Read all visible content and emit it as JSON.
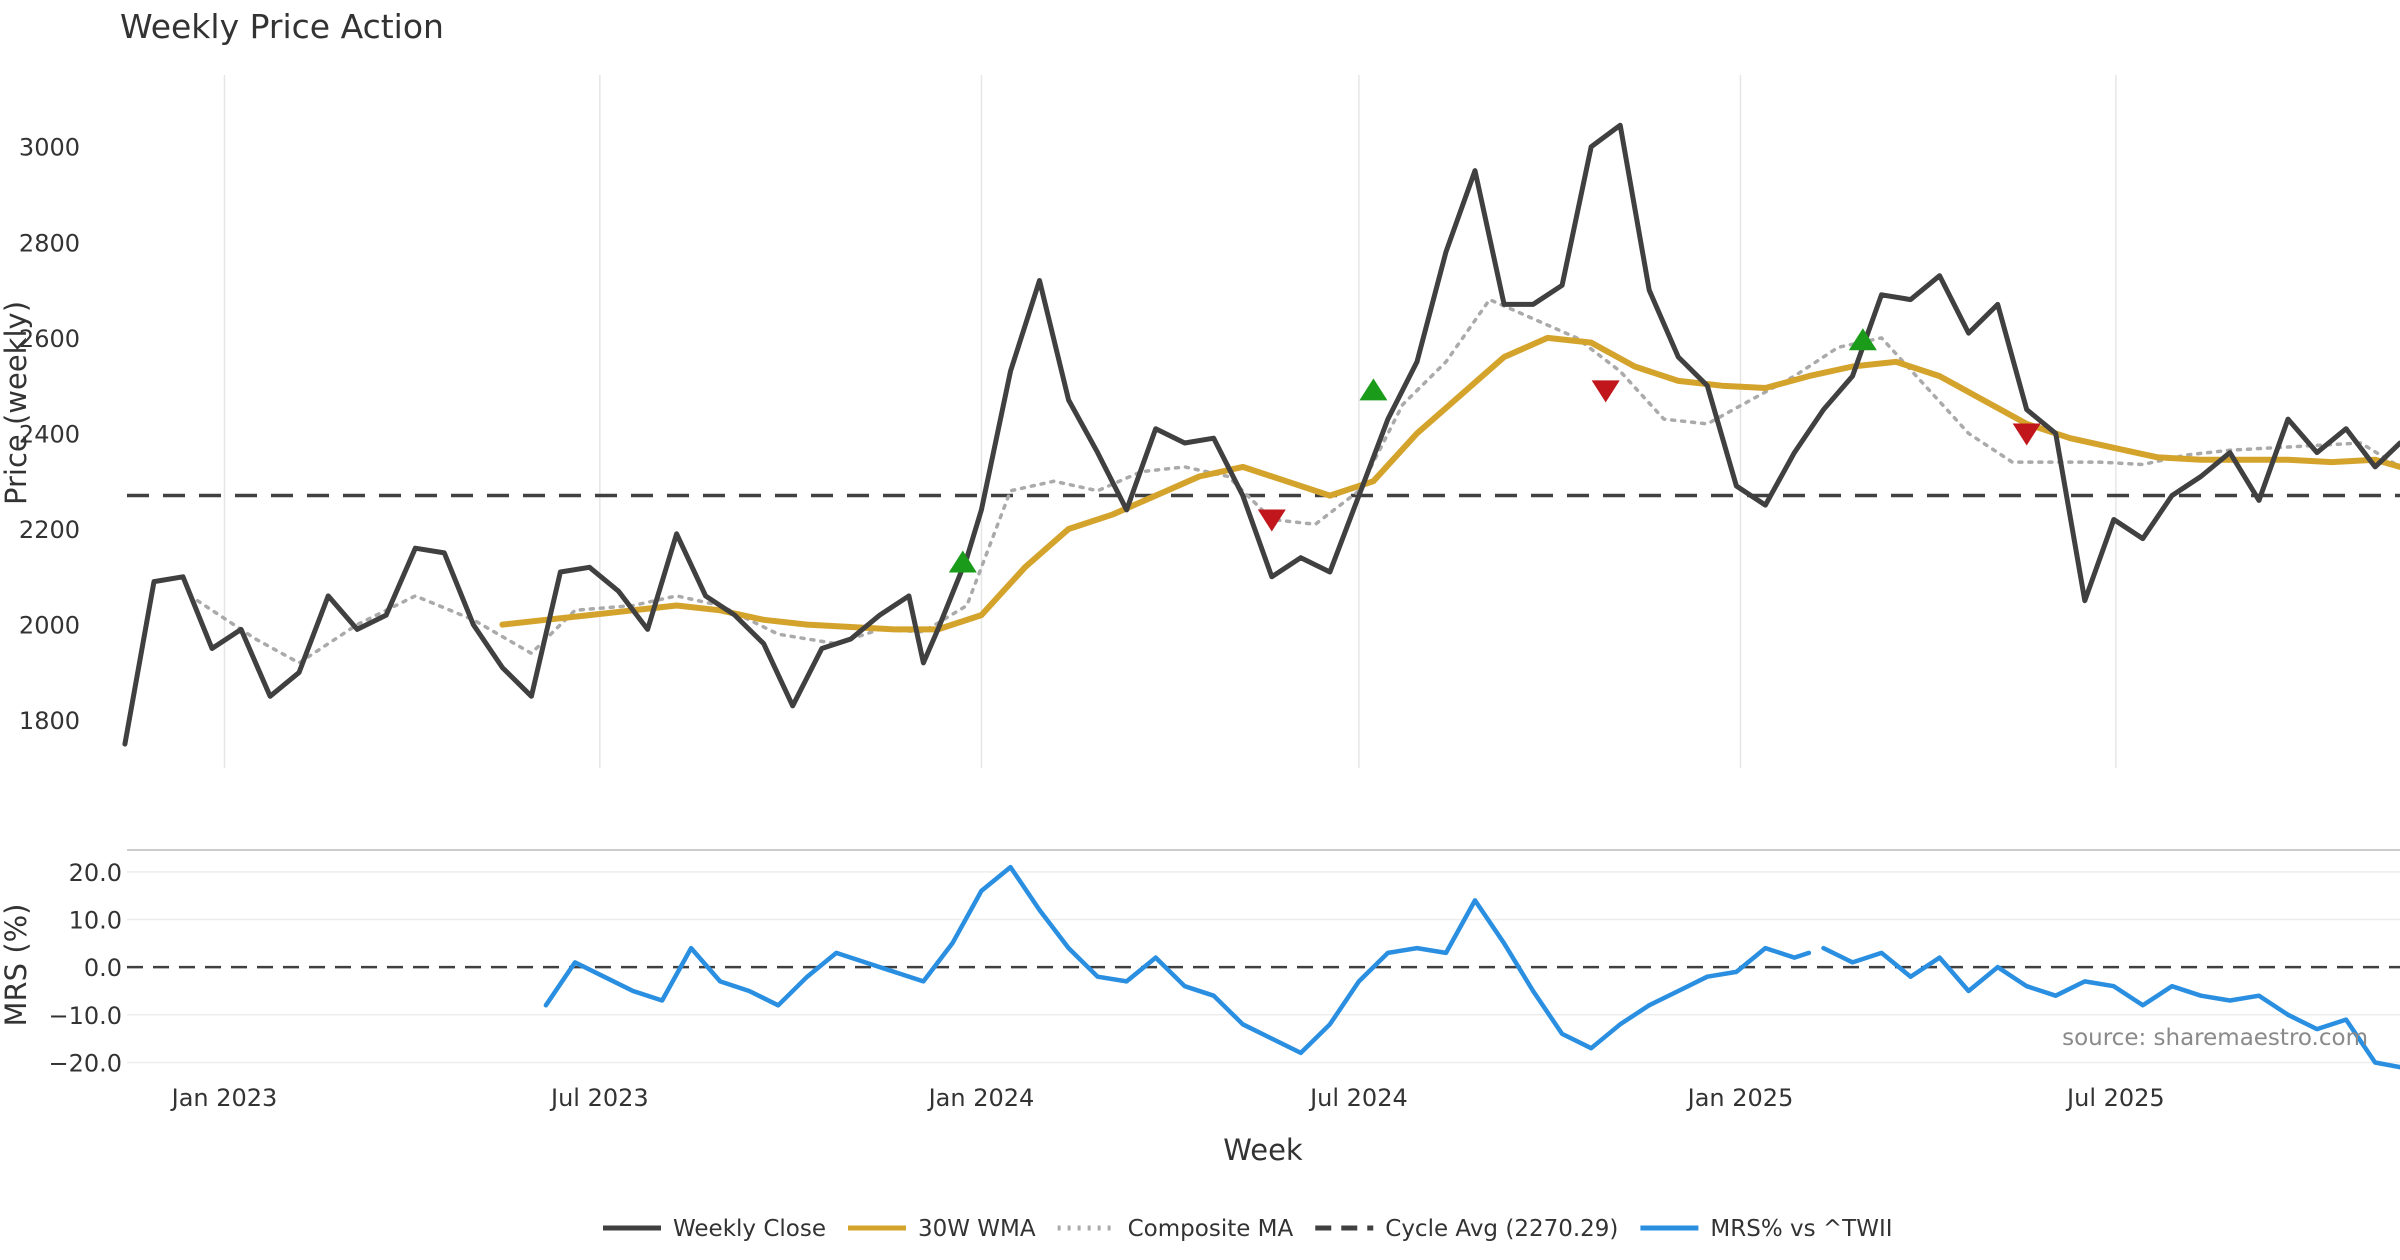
{
  "chart_data": [
    {
      "type": "line",
      "title": "Weekly Price Action",
      "ylabel": "Price (weekly)",
      "ylim": [
        1700,
        3150
      ],
      "yticks": [
        1800,
        2000,
        2200,
        2400,
        2600,
        2800,
        3000
      ],
      "xlim": [
        "2022-11-15",
        "2025-11-15"
      ],
      "xticks": [
        {
          "date": "2023-01-01",
          "label": "Jan 2023"
        },
        {
          "date": "2023-07-01",
          "label": "Jul 2023"
        },
        {
          "date": "2024-01-01",
          "label": "Jan 2024"
        },
        {
          "date": "2024-07-01",
          "label": "Jul 2024"
        },
        {
          "date": "2025-01-01",
          "label": "Jan 2025"
        },
        {
          "date": "2025-07-01",
          "label": "Jul 2025"
        }
      ],
      "grid": "vertical",
      "cycle_avg": 2270.29,
      "series": [
        {
          "name": "Weekly Close",
          "color": "#404040",
          "style": "solid",
          "x": [
            "2022-11-14",
            "2022-11-28",
            "2022-12-12",
            "2022-12-26",
            "2023-01-09",
            "2023-01-23",
            "2023-02-06",
            "2023-02-20",
            "2023-03-06",
            "2023-03-20",
            "2023-04-03",
            "2023-04-17",
            "2023-05-01",
            "2023-05-15",
            "2023-05-29",
            "2023-06-12",
            "2023-06-26",
            "2023-07-10",
            "2023-07-24",
            "2023-08-07",
            "2023-08-21",
            "2023-09-04",
            "2023-09-18",
            "2023-10-02",
            "2023-10-16",
            "2023-10-30",
            "2023-11-13",
            "2023-11-27",
            "2023-12-04",
            "2023-12-11",
            "2023-12-25",
            "2024-01-01",
            "2024-01-15",
            "2024-01-29",
            "2024-02-12",
            "2024-02-26",
            "2024-03-11",
            "2024-03-25",
            "2024-04-08",
            "2024-04-22",
            "2024-05-06",
            "2024-05-20",
            "2024-06-03",
            "2024-06-17",
            "2024-07-01",
            "2024-07-15",
            "2024-07-29",
            "2024-08-12",
            "2024-08-26",
            "2024-09-09",
            "2024-09-23",
            "2024-10-07",
            "2024-10-21",
            "2024-11-04",
            "2024-11-18",
            "2024-12-02",
            "2024-12-16",
            "2024-12-30",
            "2025-01-13",
            "2025-01-27",
            "2025-02-10",
            "2025-02-24",
            "2025-03-10",
            "2025-03-24",
            "2025-04-07",
            "2025-04-21",
            "2025-05-05",
            "2025-05-19",
            "2025-06-02",
            "2025-06-16",
            "2025-06-30",
            "2025-07-14",
            "2025-07-28",
            "2025-08-11",
            "2025-08-25",
            "2025-09-08",
            "2025-09-22",
            "2025-10-06",
            "2025-10-20",
            "2025-11-03",
            "2025-11-15"
          ],
          "values": [
            1750,
            2090,
            2100,
            1950,
            1990,
            1850,
            1900,
            2060,
            1990,
            2020,
            2160,
            2150,
            2000,
            1910,
            1850,
            2110,
            2120,
            2070,
            1990,
            2190,
            2060,
            2020,
            1960,
            1830,
            1950,
            1970,
            2020,
            2060,
            1920,
            1990,
            2140,
            2240,
            2530,
            2720,
            2470,
            2360,
            2240,
            2410,
            2380,
            2390,
            2270,
            2100,
            2140,
            2110,
            2270,
            2430,
            2550,
            2780,
            2950,
            2670,
            2670,
            2710,
            3000,
            3045,
            2700,
            2560,
            2500,
            2290,
            2250,
            2360,
            2450,
            2520,
            2690,
            2680,
            2730,
            2610,
            2670,
            2450,
            2400,
            2050,
            2220,
            2180,
            2270,
            2310,
            2360,
            2260,
            2430,
            2360,
            2410,
            2330,
            2380
          ]
        },
        {
          "name": "30W WMA",
          "color": "#d4a32c",
          "style": "solid",
          "x": [
            "2023-05-15",
            "2023-06-05",
            "2023-06-26",
            "2023-07-17",
            "2023-08-07",
            "2023-08-28",
            "2023-09-18",
            "2023-10-09",
            "2023-10-30",
            "2023-11-20",
            "2023-12-11",
            "2024-01-01",
            "2024-01-22",
            "2024-02-12",
            "2024-03-04",
            "2024-03-25",
            "2024-04-15",
            "2024-05-06",
            "2024-05-27",
            "2024-06-17",
            "2024-07-08",
            "2024-07-29",
            "2024-08-19",
            "2024-09-09",
            "2024-09-30",
            "2024-10-21",
            "2024-11-11",
            "2024-12-02",
            "2024-12-23",
            "2025-01-13",
            "2025-02-03",
            "2025-02-24",
            "2025-03-17",
            "2025-04-07",
            "2025-04-28",
            "2025-05-19",
            "2025-06-09",
            "2025-06-30",
            "2025-07-21",
            "2025-08-11",
            "2025-09-01",
            "2025-09-22",
            "2025-10-13",
            "2025-11-03",
            "2025-11-15"
          ],
          "values": [
            2000,
            2010,
            2020,
            2030,
            2040,
            2030,
            2010,
            2000,
            1995,
            1990,
            1990,
            2020,
            2120,
            2200,
            2230,
            2270,
            2310,
            2330,
            2300,
            2270,
            2300,
            2400,
            2480,
            2560,
            2600,
            2590,
            2540,
            2510,
            2500,
            2495,
            2520,
            2540,
            2550,
            2520,
            2470,
            2420,
            2390,
            2370,
            2350,
            2345,
            2345,
            2345,
            2340,
            2345,
            2330
          ]
        },
        {
          "name": "Composite MA",
          "color": "#aaaaaa",
          "style": "dotted",
          "x": [
            "2022-12-19",
            "2023-01-16",
            "2023-02-06",
            "2023-03-06",
            "2023-04-03",
            "2023-05-01",
            "2023-05-29",
            "2023-06-19",
            "2023-07-17",
            "2023-08-07",
            "2023-08-28",
            "2023-09-25",
            "2023-10-23",
            "2023-11-13",
            "2023-12-04",
            "2023-12-25",
            "2024-01-15",
            "2024-02-05",
            "2024-02-26",
            "2024-03-18",
            "2024-04-08",
            "2024-04-29",
            "2024-05-20",
            "2024-06-10",
            "2024-07-01",
            "2024-07-22",
            "2024-08-12",
            "2024-09-02",
            "2024-09-23",
            "2024-10-14",
            "2024-11-04",
            "2024-11-25",
            "2024-12-16",
            "2025-01-06",
            "2025-01-27",
            "2025-02-17",
            "2025-03-10",
            "2025-03-31",
            "2025-04-21",
            "2025-05-12",
            "2025-06-02",
            "2025-06-23",
            "2025-07-14",
            "2025-08-04",
            "2025-08-25",
            "2025-09-15",
            "2025-10-06",
            "2025-10-27",
            "2025-11-15"
          ],
          "values": [
            2050,
            1970,
            1920,
            2000,
            2060,
            2010,
            1940,
            2030,
            2040,
            2060,
            2040,
            1980,
            1960,
            1990,
            1985,
            2040,
            2280,
            2300,
            2280,
            2320,
            2330,
            2310,
            2220,
            2210,
            2280,
            2460,
            2550,
            2680,
            2640,
            2600,
            2530,
            2430,
            2420,
            2470,
            2520,
            2580,
            2600,
            2500,
            2400,
            2340,
            2340,
            2340,
            2335,
            2355,
            2365,
            2370,
            2375,
            2380,
            2330
          ]
        }
      ],
      "markers": [
        {
          "type": "buy",
          "color": "#1a9c1a",
          "x": "2023-12-23",
          "y": 2130
        },
        {
          "type": "sell",
          "color": "#c0161c",
          "x": "2024-05-20",
          "y": 2220
        },
        {
          "type": "buy",
          "color": "#1a9c1a",
          "x": "2024-07-08",
          "y": 2490
        },
        {
          "type": "sell",
          "color": "#c0161c",
          "x": "2024-10-28",
          "y": 2490
        },
        {
          "type": "buy",
          "color": "#1a9c1a",
          "x": "2025-03-01",
          "y": 2595
        },
        {
          "type": "sell",
          "color": "#c0161c",
          "x": "2025-05-19",
          "y": 2400
        }
      ]
    },
    {
      "type": "line",
      "ylabel": "MRS (%)",
      "xlabel": "Week",
      "ylim": [
        -22,
        25
      ],
      "yticks": [
        20,
        10,
        0,
        -10,
        -20
      ],
      "ytick_labels": [
        "20.0",
        "10.0",
        "0.0",
        "−10.0",
        "−20.0"
      ],
      "zero_line": 0,
      "series": [
        {
          "name": "MRS% vs ^TWII",
          "color": "#2a8fe0",
          "segments": [
            {
              "x": [
                "2023-06-05",
                "2023-06-19",
                "2023-07-03",
                "2023-07-17",
                "2023-07-31",
                "2023-08-14",
                "2023-08-28",
                "2023-09-11",
                "2023-09-25",
                "2023-10-09",
                "2023-10-23",
                "2023-11-06",
                "2023-11-20",
                "2023-12-04",
                "2023-12-18",
                "2024-01-01",
                "2024-01-15",
                "2024-01-29",
                "2024-02-12",
                "2024-02-26",
                "2024-03-11",
                "2024-03-25",
                "2024-04-08",
                "2024-04-22",
                "2024-05-06",
                "2024-05-20",
                "2024-06-03",
                "2024-06-17",
                "2024-07-01",
                "2024-07-15",
                "2024-07-29",
                "2024-08-12",
                "2024-08-26",
                "2024-09-09",
                "2024-09-23",
                "2024-10-07",
                "2024-10-21",
                "2024-11-04",
                "2024-11-18",
                "2024-12-02",
                "2024-12-16",
                "2024-12-30",
                "2025-01-13",
                "2025-01-27",
                "2025-02-03"
              ],
              "values": [
                -8,
                1,
                -2,
                -5,
                -7,
                4,
                -3,
                -5,
                -8,
                -2,
                3,
                1,
                -1,
                -3,
                5,
                16,
                21,
                12,
                4,
                -2,
                -3,
                2,
                -4,
                -6,
                -12,
                -15,
                -18,
                -12,
                -3,
                3,
                4,
                3,
                14,
                5,
                -5,
                -14,
                -17,
                -12,
                -8,
                -5,
                -2,
                -1,
                4,
                2,
                3
              ]
            },
            {
              "x": [
                "2025-02-10",
                "2025-02-24",
                "2025-03-10",
                "2025-03-24",
                "2025-04-07",
                "2025-04-21",
                "2025-05-05",
                "2025-05-19",
                "2025-06-02",
                "2025-06-16",
                "2025-06-30",
                "2025-07-14",
                "2025-07-28",
                "2025-08-11",
                "2025-08-25",
                "2025-09-08",
                "2025-09-22",
                "2025-10-06",
                "2025-10-20",
                "2025-11-03",
                "2025-11-15"
              ],
              "values": [
                4,
                1,
                3,
                -2,
                2,
                -5,
                0,
                -4,
                -6,
                -3,
                -4,
                -8,
                -4,
                -6,
                -7,
                -6,
                -10,
                -13,
                -11,
                -20,
                -21
              ]
            }
          ]
        }
      ]
    }
  ],
  "legend": [
    {
      "label": "Weekly Close",
      "color": "#404040",
      "style": "solid"
    },
    {
      "label": "30W WMA",
      "color": "#d4a32c",
      "style": "solid"
    },
    {
      "label": "Composite MA",
      "color": "#aaaaaa",
      "style": "dotted"
    },
    {
      "label": "Cycle Avg (2270.29)",
      "color": "#404040",
      "style": "dashed"
    },
    {
      "label": "MRS% vs ^TWII",
      "color": "#2a8fe0",
      "style": "solid"
    }
  ],
  "source": "source: sharemaestro.com"
}
